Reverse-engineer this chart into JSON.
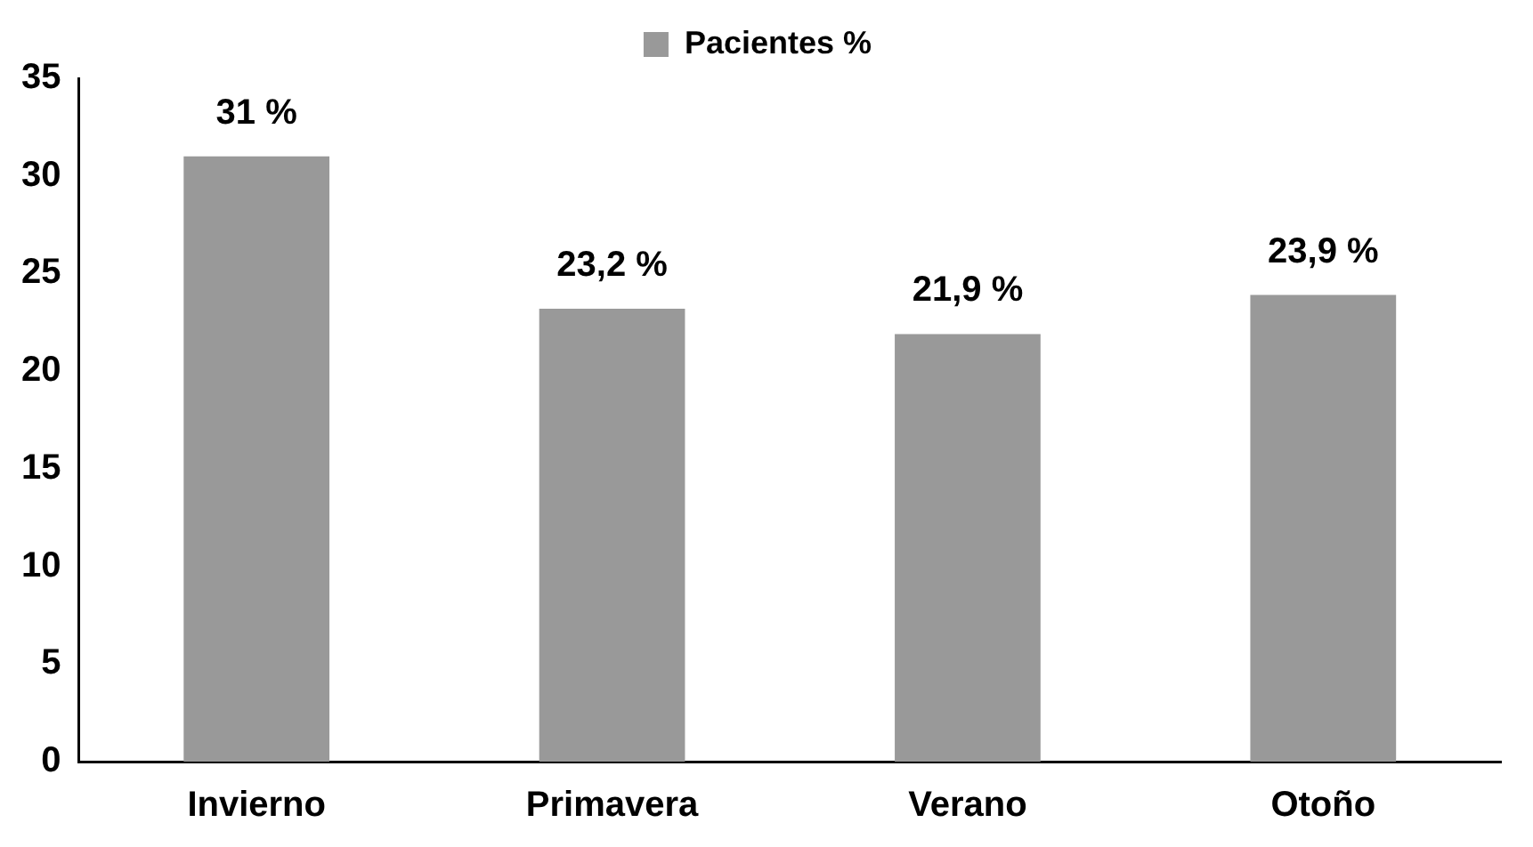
{
  "chart_data": {
    "type": "bar",
    "categories": [
      "Invierno",
      "Primavera",
      "Verano",
      "Otoño"
    ],
    "series": [
      {
        "name": "Pacientes %",
        "color": "#999999",
        "values": [
          31,
          23.2,
          21.9,
          23.9
        ],
        "value_labels": [
          "31 %",
          "23,2 %",
          "21,9 %",
          "23,9 %"
        ]
      }
    ],
    "ylim": [
      0,
      35
    ],
    "yticks": [
      0,
      5,
      10,
      15,
      20,
      25,
      30,
      35
    ],
    "grid": false,
    "legend": "top"
  }
}
